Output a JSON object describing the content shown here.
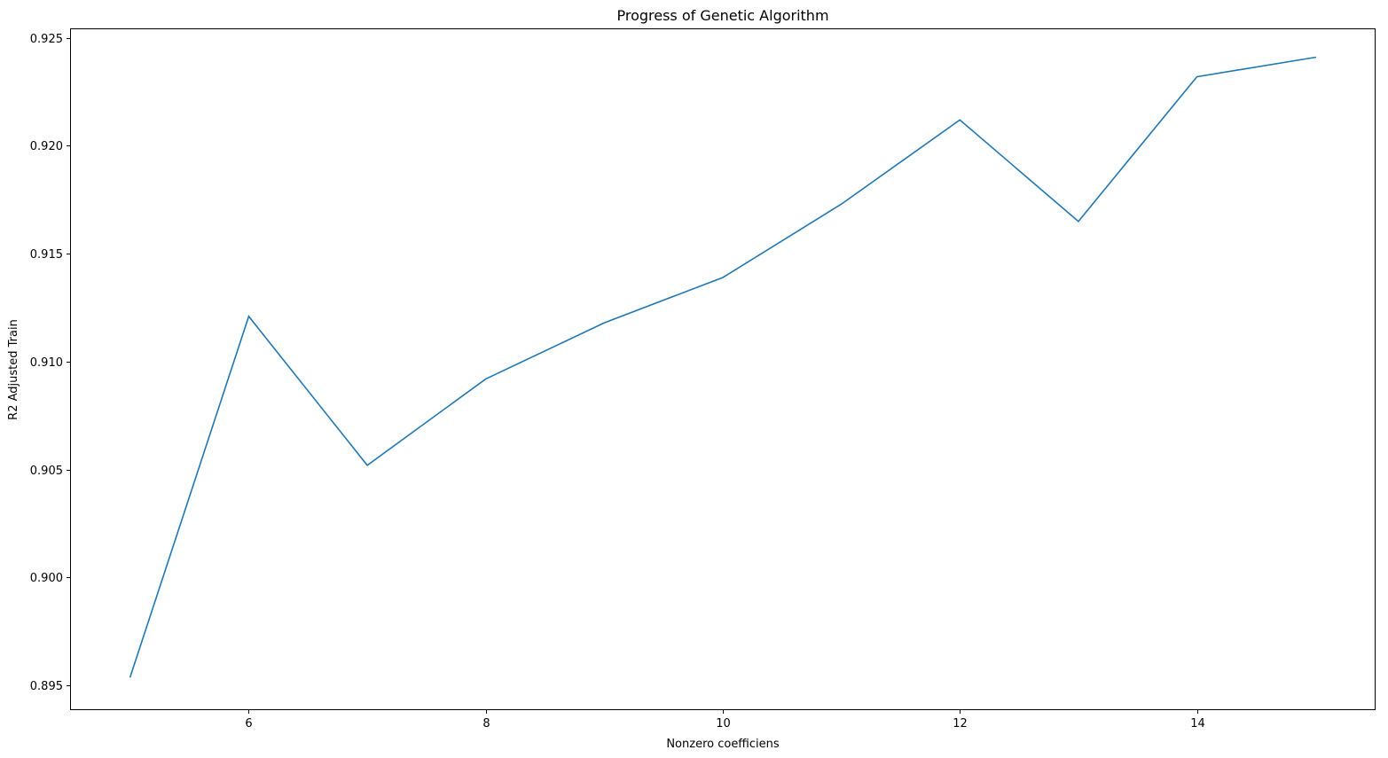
{
  "chart_data": {
    "type": "line",
    "title": "Progress of Genetic Algorithm",
    "xlabel": "Nonzero coefficiens",
    "ylabel": "R2 Adjusted Train",
    "xlim": [
      4.5,
      15.5
    ],
    "ylim": [
      0.8939,
      0.9254
    ],
    "xticks": [
      6,
      8,
      10,
      12,
      14
    ],
    "xtick_labels": [
      "6",
      "8",
      "10",
      "12",
      "14"
    ],
    "yticks": [
      0.895,
      0.9,
      0.905,
      0.91,
      0.915,
      0.92,
      0.925
    ],
    "ytick_labels": [
      "0.895",
      "0.900",
      "0.905",
      "0.910",
      "0.915",
      "0.920",
      "0.925"
    ],
    "grid": false,
    "series": [
      {
        "color": "#1f77b4",
        "x": [
          5,
          6,
          7,
          8,
          9,
          10,
          11,
          12,
          13,
          14,
          15
        ],
        "y": [
          0.8954,
          0.9121,
          0.9052,
          0.9092,
          0.9118,
          0.9139,
          0.9173,
          0.9212,
          0.9165,
          0.9232,
          0.9241
        ]
      }
    ]
  }
}
